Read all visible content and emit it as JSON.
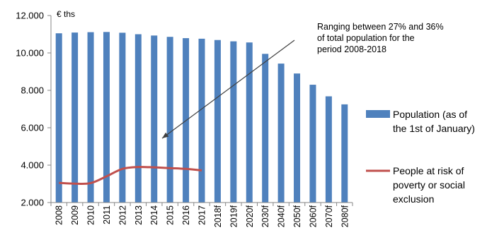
{
  "chart_data": {
    "type": "bar",
    "y_unit": "€ ths",
    "ylim": [
      2000,
      12000
    ],
    "yticks": [
      "2.000",
      "4.000",
      "6.000",
      "8.000",
      "10.000",
      "12.000"
    ],
    "ytick_values": [
      2000,
      4000,
      6000,
      8000,
      10000,
      12000
    ],
    "categories": [
      "2008",
      "2009",
      "2010",
      "2011",
      "2012",
      "2013",
      "2014",
      "2015",
      "2016",
      "2017",
      "2018f",
      "2019f",
      "2020f",
      "2030f",
      "2040f",
      "2050f",
      "2060f",
      "2070f",
      "2080f"
    ],
    "series": [
      {
        "name": "Population (as of the 1st of January)",
        "kind": "bar",
        "color": "#4f81bd",
        "values": [
          11050,
          11090,
          11110,
          11120,
          11080,
          11000,
          10930,
          10860,
          10790,
          10760,
          10690,
          10620,
          10560,
          9950,
          9430,
          8900,
          8300,
          7680,
          7250
        ]
      },
      {
        "name": "People at risk of poverty or social exclusion",
        "kind": "line",
        "color": "#c0504d",
        "values": [
          3050,
          3010,
          3040,
          3400,
          3800,
          3900,
          3880,
          3840,
          3800,
          3720,
          null,
          null,
          null,
          null,
          null,
          null,
          null,
          null,
          null
        ]
      }
    ],
    "legend": {
      "placement": "right",
      "entries": [
        [
          "Population (as of",
          "the 1st of January)"
        ],
        [
          "People at risk of",
          "poverty or social",
          "exclusion"
        ]
      ]
    },
    "annotation": {
      "lines": [
        "Ranging between 27% and 36%",
        "of total population for the",
        "period 2008-2018"
      ]
    },
    "grid": false
  }
}
